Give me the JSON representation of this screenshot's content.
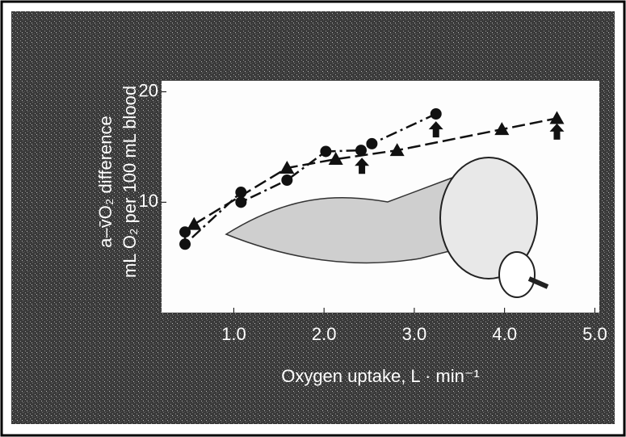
{
  "chart_data": {
    "type": "line",
    "y_label": [
      "a–v̄O₂ difference",
      "mL O₂ per 100 mL blood"
    ],
    "x_label": "Oxygen uptake, L · min⁻¹",
    "xlim": [
      0.2,
      5.05
    ],
    "ylim": [
      0,
      21
    ],
    "xticks": [
      {
        "value": 1,
        "label": "1.0"
      },
      {
        "value": 2,
        "label": "2.0"
      },
      {
        "value": 3,
        "label": "3.0"
      },
      {
        "value": 4,
        "label": "4.0"
      },
      {
        "value": 5,
        "label": "5.0"
      }
    ],
    "yticks": [
      10,
      20
    ],
    "series": [
      {
        "color": "#111111",
        "marker": "circle",
        "line": true,
        "x": [
          0.46,
          0.46,
          1.08,
          1.08,
          1.59,
          2.02,
          2.41,
          2.53,
          3.24
        ],
        "values": [
          7.3,
          6.2,
          10.9,
          10.0,
          12.0,
          14.6,
          14.7,
          15.3,
          18.0
        ]
      },
      {
        "color": "#111111",
        "marker": "triangle",
        "line": true,
        "x": [
          0.56,
          1.59,
          2.13,
          2.81,
          3.97,
          4.58
        ],
        "values": [
          8.0,
          13.1,
          13.9,
          14.7,
          16.6,
          17.6
        ]
      },
      {
        "color": "#111111",
        "marker": "arrow",
        "line": false,
        "x": [
          2.42,
          3.24,
          4.58
        ],
        "values": [
          13.3,
          16.6,
          16.4
        ]
      }
    ]
  }
}
